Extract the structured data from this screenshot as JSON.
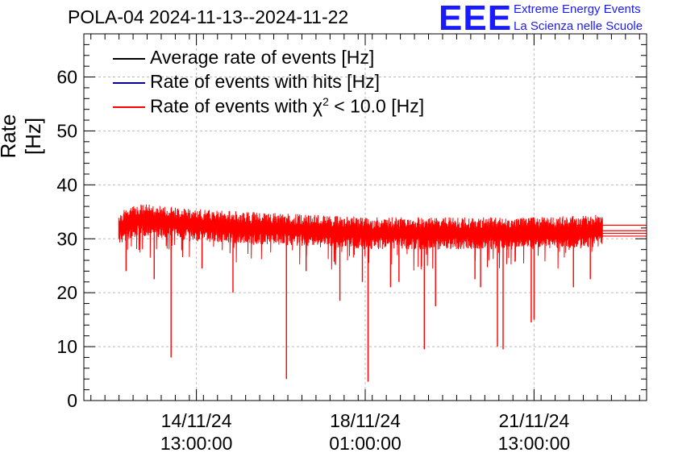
{
  "header": {
    "title": "POLA-04 2024-11-13--2024-11-22",
    "logo_mark": "EEE",
    "logo_line1": "Extreme Energy Events",
    "logo_line2": "La Scienza nelle Scuole"
  },
  "colors": {
    "average": "#000000",
    "hits": "#000099",
    "chi2": "#ff0000",
    "logo": "#1a1aff",
    "grid": "#bbbbbb"
  },
  "chart_data": {
    "type": "line",
    "ylabel": "Rate [Hz]",
    "xlabel": "",
    "ylim": [
      0,
      68
    ],
    "yticks": [
      0,
      10,
      20,
      30,
      40,
      50,
      60
    ],
    "xlim": [
      0.0,
      10.0
    ],
    "xticks": [
      {
        "x": 2.0,
        "label_line1": "14/11/24",
        "label_line2": "13:00:00"
      },
      {
        "x": 5.0,
        "label_line1": "18/11/24",
        "label_line2": "01:00:00"
      },
      {
        "x": 8.0,
        "label_line1": "21/11/24",
        "label_line2": "13:00:00"
      }
    ],
    "grid": true,
    "legend_position": "top-left",
    "series": [
      {
        "name": "Average rate of events [Hz]",
        "color_key": "average"
      },
      {
        "name": "Rate of events with hits [Hz]",
        "color_key": "hits"
      },
      {
        "name_prefix": "Rate of events with ",
        "name_symbol": "χ",
        "name_sup": "2",
        "name_suffix": " < 10.0 [Hz]",
        "color_key": "chi2"
      }
    ],
    "trace": {
      "x_start": 0.62,
      "x_end": 9.22,
      "baseline_points": [
        {
          "x": 0.62,
          "y": 32.0
        },
        {
          "x": 1.0,
          "y": 33.5
        },
        {
          "x": 2.0,
          "y": 32.5
        },
        {
          "x": 3.0,
          "y": 32.0
        },
        {
          "x": 4.0,
          "y": 31.5
        },
        {
          "x": 5.0,
          "y": 31.0
        },
        {
          "x": 6.0,
          "y": 31.0
        },
        {
          "x": 7.0,
          "y": 31.0
        },
        {
          "x": 8.0,
          "y": 31.0
        },
        {
          "x": 9.22,
          "y": 31.5
        }
      ],
      "dips": [
        {
          "x": 0.75,
          "y": 24.0
        },
        {
          "x": 1.25,
          "y": 22.5
        },
        {
          "x": 1.55,
          "y": 8.0
        },
        {
          "x": 2.1,
          "y": 24.5
        },
        {
          "x": 2.65,
          "y": 20.0
        },
        {
          "x": 3.6,
          "y": 4.0
        },
        {
          "x": 3.95,
          "y": 24.0
        },
        {
          "x": 4.55,
          "y": 18.5
        },
        {
          "x": 4.95,
          "y": 22.0
        },
        {
          "x": 5.05,
          "y": 3.5
        },
        {
          "x": 5.45,
          "y": 21.0
        },
        {
          "x": 5.6,
          "y": 22.0
        },
        {
          "x": 6.05,
          "y": 9.5
        },
        {
          "x": 6.25,
          "y": 17.5
        },
        {
          "x": 6.95,
          "y": 22.5
        },
        {
          "x": 7.05,
          "y": 21.0
        },
        {
          "x": 7.35,
          "y": 10.0
        },
        {
          "x": 7.45,
          "y": 9.5
        },
        {
          "x": 7.95,
          "y": 14.5
        },
        {
          "x": 8.0,
          "y": 15.0
        },
        {
          "x": 8.7,
          "y": 21.0
        },
        {
          "x": 9.0,
          "y": 22.5
        }
      ],
      "tail_levels": [
        32.5,
        31.5,
        30.5,
        31.0
      ]
    }
  }
}
